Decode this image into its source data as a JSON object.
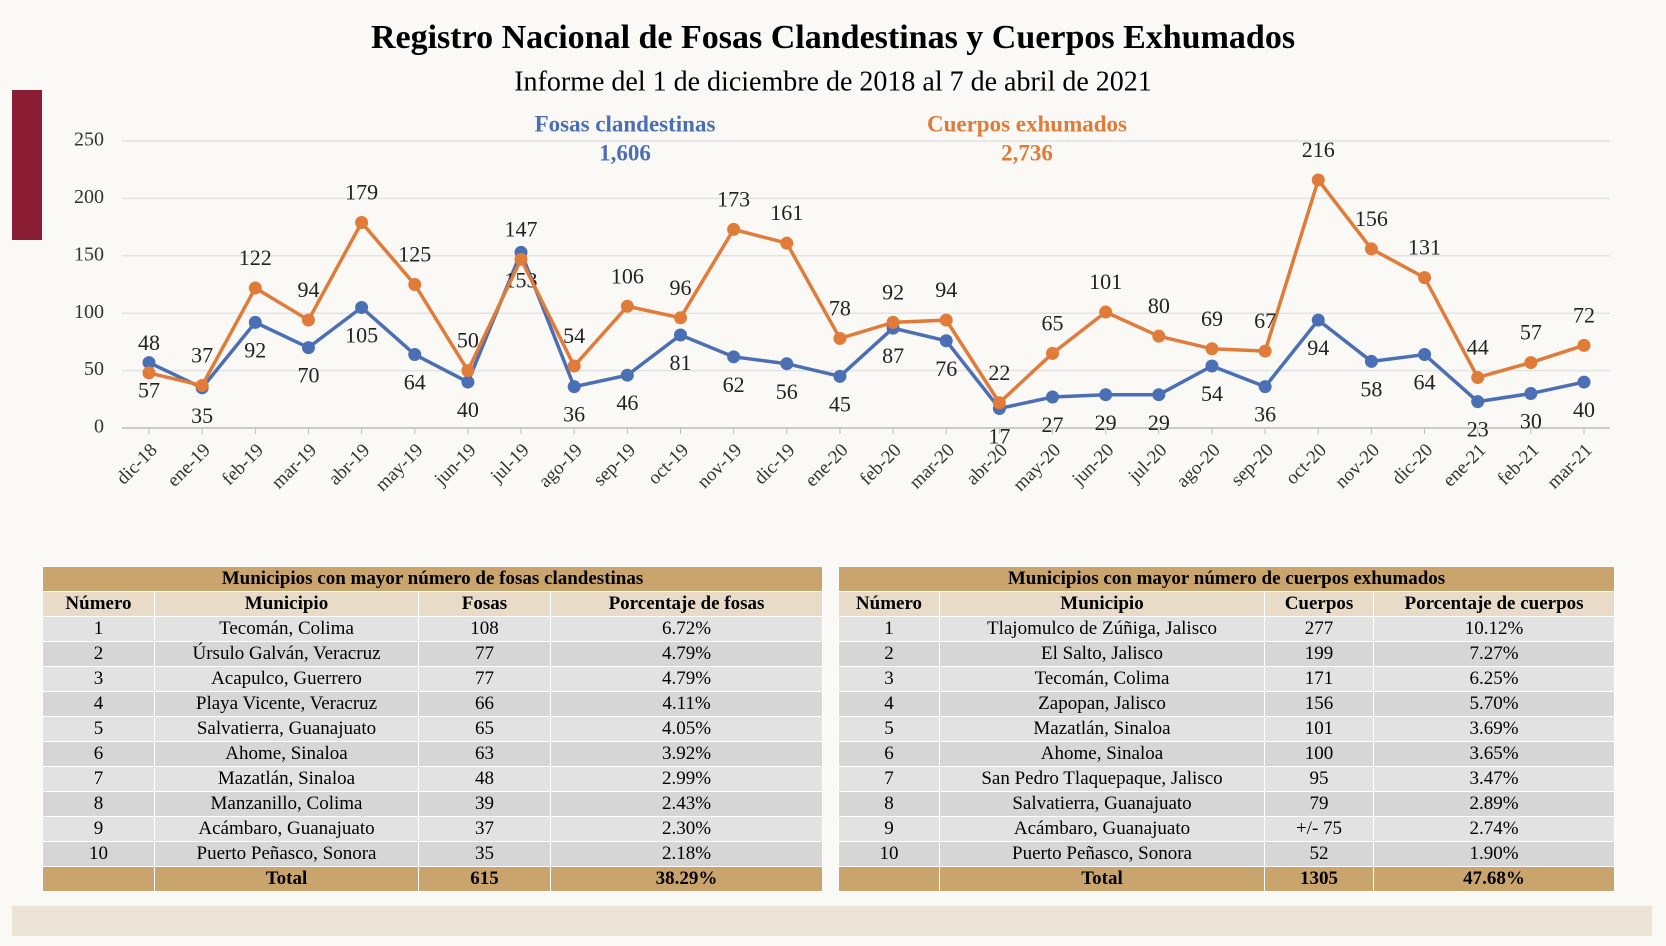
{
  "chart_data": {
    "type": "line",
    "title": "Registro Nacional de Fosas Clandestinas y Cuerpos Exhumados",
    "subtitle": "Informe del 1 de diciembre de 2018 al 7 de abril de 2021",
    "categories": [
      "dic-18",
      "ene-19",
      "feb-19",
      "mar-19",
      "abr-19",
      "may-19",
      "jun-19",
      "jul-19",
      "ago-19",
      "sep-19",
      "oct-19",
      "nov-19",
      "dic-19",
      "ene-20",
      "feb-20",
      "mar-20",
      "abr-20",
      "may-20",
      "jun-20",
      "jul-20",
      "ago-20",
      "sep-20",
      "oct-20",
      "nov-20",
      "dic-20",
      "ene-21",
      "feb-21",
      "mar-21"
    ],
    "series": [
      {
        "name": "Fosas clandestinas",
        "total": "1,606",
        "color": "#4a6fb5",
        "values": [
          57,
          35,
          92,
          70,
          105,
          64,
          40,
          153,
          36,
          46,
          81,
          62,
          56,
          45,
          87,
          76,
          17,
          27,
          29,
          29,
          54,
          36,
          94,
          58,
          64,
          23,
          30,
          40
        ]
      },
      {
        "name": "Cuerpos exhumados",
        "total": "2,736",
        "color": "#e07b39",
        "values": [
          48,
          37,
          122,
          94,
          179,
          125,
          50,
          147,
          54,
          106,
          96,
          173,
          161,
          78,
          92,
          94,
          22,
          65,
          101,
          80,
          69,
          67,
          216,
          156,
          131,
          44,
          57,
          72
        ]
      }
    ],
    "ylim": [
      0,
      250
    ],
    "yticks": [
      0,
      50,
      100,
      150,
      200,
      250
    ],
    "grid": true
  },
  "tables": [
    {
      "title": "Municipios con mayor número de fosas clandestinas",
      "header": [
        "Número",
        "Municipio",
        "Fosas",
        "Porcentaje de fosas"
      ],
      "rows": [
        [
          "1",
          "Tecomán, Colima",
          "108",
          "6.72%"
        ],
        [
          "2",
          "Úrsulo Galván, Veracruz",
          "77",
          "4.79%"
        ],
        [
          "3",
          "Acapulco, Guerrero",
          "77",
          "4.79%"
        ],
        [
          "4",
          "Playa Vicente, Veracruz",
          "66",
          "4.11%"
        ],
        [
          "5",
          "Salvatierra, Guanajuato",
          "65",
          "4.05%"
        ],
        [
          "6",
          "Ahome, Sinaloa",
          "63",
          "3.92%"
        ],
        [
          "7",
          "Mazatlán, Sinaloa",
          "48",
          "2.99%"
        ],
        [
          "8",
          "Manzanillo, Colima",
          "39",
          "2.43%"
        ],
        [
          "9",
          "Acámbaro, Guanajuato",
          "37",
          "2.30%"
        ],
        [
          "10",
          "Puerto Peñasco, Sonora",
          "35",
          "2.18%"
        ]
      ],
      "total": [
        "Total",
        "615",
        "38.29%"
      ]
    },
    {
      "title": "Municipios con mayor número de cuerpos exhumados",
      "header": [
        "Número",
        "Municipio",
        "Cuerpos",
        "Porcentaje de cuerpos"
      ],
      "rows": [
        [
          "1",
          "Tlajomulco de Zúñiga, Jalisco",
          "277",
          "10.12%"
        ],
        [
          "2",
          "El Salto, Jalisco",
          "199",
          "7.27%"
        ],
        [
          "3",
          "Tecomán, Colima",
          "171",
          "6.25%"
        ],
        [
          "4",
          "Zapopan, Jalisco",
          "156",
          "5.70%"
        ],
        [
          "5",
          "Mazatlán, Sinaloa",
          "101",
          "3.69%"
        ],
        [
          "6",
          "Ahome, Sinaloa",
          "100",
          "3.65%"
        ],
        [
          "7",
          "San Pedro Tlaquepaque, Jalisco",
          "95",
          "3.47%"
        ],
        [
          "8",
          "Salvatierra, Guanajuato",
          "79",
          "2.89%"
        ],
        [
          "9",
          "Acámbaro, Guanajuato",
          "+/- 75",
          "2.74%"
        ],
        [
          "10",
          "Puerto Peñasco, Sonora",
          "52",
          "1.90%"
        ]
      ],
      "total": [
        "Total",
        "1305",
        "47.68%"
      ]
    }
  ]
}
